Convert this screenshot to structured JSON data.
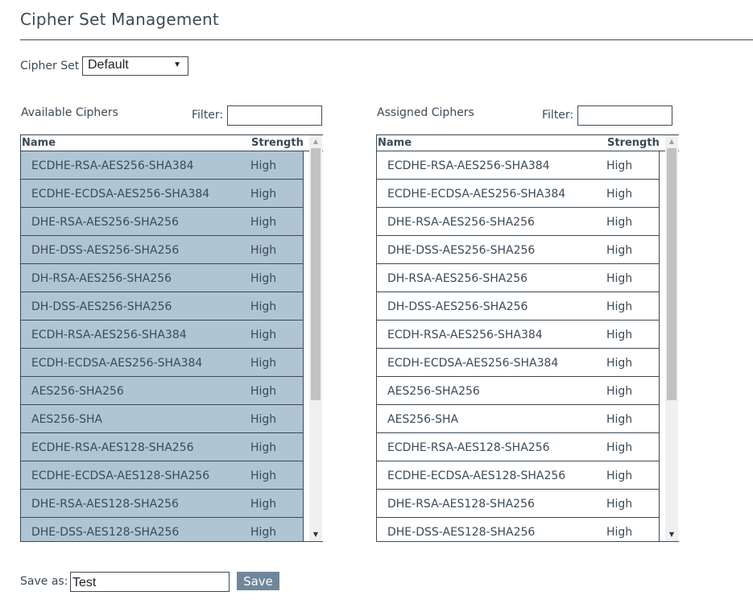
{
  "page_title": "Cipher Set Management",
  "cipher_set": {
    "label": "Cipher Set",
    "selected": "Default",
    "arrow": "▼"
  },
  "available": {
    "title": "Available Ciphers",
    "filter_label": "Filter:",
    "filter_value": "",
    "columns": {
      "name": "Name",
      "strength": "Strength"
    },
    "rows": [
      {
        "name": "ECDHE-RSA-AES256-SHA384",
        "strength": "High"
      },
      {
        "name": "ECDHE-ECDSA-AES256-SHA384",
        "strength": "High"
      },
      {
        "name": "DHE-RSA-AES256-SHA256",
        "strength": "High"
      },
      {
        "name": "DHE-DSS-AES256-SHA256",
        "strength": "High"
      },
      {
        "name": "DH-RSA-AES256-SHA256",
        "strength": "High"
      },
      {
        "name": "DH-DSS-AES256-SHA256",
        "strength": "High"
      },
      {
        "name": "ECDH-RSA-AES256-SHA384",
        "strength": "High"
      },
      {
        "name": "ECDH-ECDSA-AES256-SHA384",
        "strength": "High"
      },
      {
        "name": "AES256-SHA256",
        "strength": "High"
      },
      {
        "name": "AES256-SHA",
        "strength": "High"
      },
      {
        "name": "ECDHE-RSA-AES128-SHA256",
        "strength": "High"
      },
      {
        "name": "ECDHE-ECDSA-AES128-SHA256",
        "strength": "High"
      },
      {
        "name": "DHE-RSA-AES128-SHA256",
        "strength": "High"
      },
      {
        "name": "DHE-DSS-AES128-SHA256",
        "strength": "High"
      }
    ]
  },
  "assigned": {
    "title": "Assigned Ciphers",
    "filter_label": "Filter:",
    "filter_value": "",
    "columns": {
      "name": "Name",
      "strength": "Strength"
    },
    "rows": [
      {
        "name": "ECDHE-RSA-AES256-SHA384",
        "strength": "High"
      },
      {
        "name": "ECDHE-ECDSA-AES256-SHA384",
        "strength": "High"
      },
      {
        "name": "DHE-RSA-AES256-SHA256",
        "strength": "High"
      },
      {
        "name": "DHE-DSS-AES256-SHA256",
        "strength": "High"
      },
      {
        "name": "DH-RSA-AES256-SHA256",
        "strength": "High"
      },
      {
        "name": "DH-DSS-AES256-SHA256",
        "strength": "High"
      },
      {
        "name": "ECDH-RSA-AES256-SHA384",
        "strength": "High"
      },
      {
        "name": "ECDH-ECDSA-AES256-SHA384",
        "strength": "High"
      },
      {
        "name": "AES256-SHA256",
        "strength": "High"
      },
      {
        "name": "AES256-SHA",
        "strength": "High"
      },
      {
        "name": "ECDHE-RSA-AES128-SHA256",
        "strength": "High"
      },
      {
        "name": "ECDHE-ECDSA-AES128-SHA256",
        "strength": "High"
      },
      {
        "name": "DHE-RSA-AES128-SHA256",
        "strength": "High"
      },
      {
        "name": "DHE-DSS-AES128-SHA256",
        "strength": "High"
      }
    ]
  },
  "save": {
    "label": "Save as:",
    "value": "Test",
    "button": "Save"
  },
  "scroll": {
    "up_glyph": "▲",
    "down_glyph": "▼"
  },
  "colors": {
    "selected_row": "#afc5d4",
    "button": "#6f879c",
    "text": "#3b4a57"
  }
}
